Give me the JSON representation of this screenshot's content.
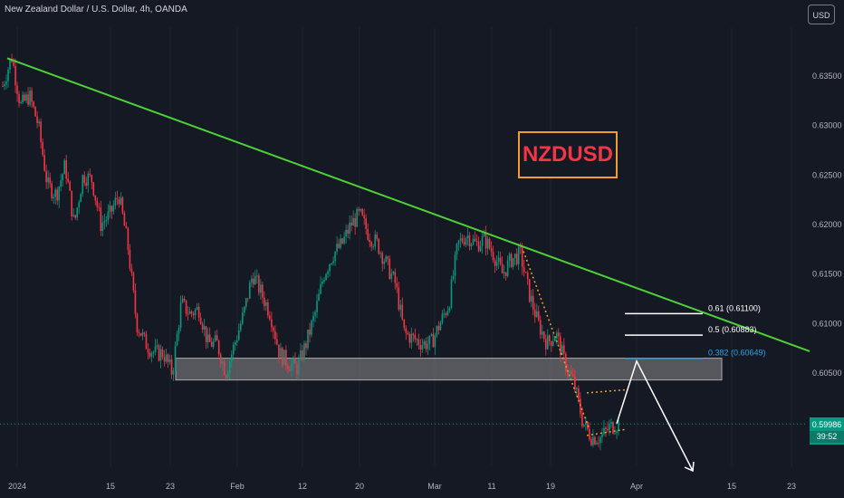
{
  "header": {
    "symbol_title": "New Zealand Dollar / U.S. Dollar, 4h, OANDA",
    "currency_button": "USD"
  },
  "annotation": {
    "pair_label": "NZDUSD"
  },
  "last_price": {
    "value": "0.59986",
    "countdown": "39:52"
  },
  "colors": {
    "background": "#151924",
    "up_candle": "#089981",
    "down_candle": "#f23645",
    "trendline": "#4cd137",
    "fib_line": "#ffffff",
    "fib_382": "#22a7f0",
    "zone": "#808080",
    "label_border": "#f29e2c",
    "label_text": "#f23645"
  },
  "chart_data": {
    "type": "candlestick",
    "title": "New Zealand Dollar / U.S. Dollar, 4h, OANDA",
    "x_ticks": [
      "2024",
      "15",
      "23",
      "Feb",
      "12",
      "20",
      "Mar",
      "11",
      "19",
      "Apr",
      "15",
      "23"
    ],
    "y_ticks": [
      "0.63500",
      "0.63000",
      "0.62500",
      "0.62000",
      "0.61500",
      "0.61000",
      "0.60500"
    ],
    "ylim": [
      0.597,
      0.637
    ],
    "price_path": [
      [
        0.634,
        0.637
      ],
      [
        0.632,
        0.633
      ],
      [
        0.63,
        0.624
      ],
      [
        0.623,
        0.626
      ],
      [
        0.62,
        0.625
      ],
      [
        0.6245,
        0.62
      ],
      [
        0.621,
        0.623
      ],
      [
        0.618,
        0.61
      ],
      [
        0.608,
        0.607
      ],
      [
        0.607,
        0.605
      ],
      [
        0.612,
        0.611
      ],
      [
        0.6115,
        0.608
      ],
      [
        0.608,
        0.605
      ],
      [
        0.608,
        0.611
      ],
      [
        0.615,
        0.613
      ],
      [
        0.611,
        0.607
      ],
      [
        0.606,
        0.6055
      ],
      [
        0.608,
        0.611
      ],
      [
        0.615,
        0.617
      ],
      [
        0.618,
        0.62
      ],
      [
        0.621,
        0.619
      ],
      [
        0.618,
        0.616
      ],
      [
        0.614,
        0.609
      ],
      [
        0.6085,
        0.608
      ],
      [
        0.608,
        0.61
      ],
      [
        0.612,
        0.618
      ],
      [
        0.619,
        0.618
      ],
      [
        0.6185,
        0.617
      ],
      [
        0.615,
        0.6165
      ],
      [
        0.617,
        0.613
      ],
      [
        0.61,
        0.608
      ],
      [
        0.609,
        0.606
      ],
      [
        0.604,
        0.6
      ],
      [
        0.5985,
        0.5985
      ],
      [
        0.5995,
        0.5999
      ]
    ],
    "trendline": {
      "from": [
        "2024",
        0.6368
      ],
      "to": [
        "Apr 23+",
        0.6072
      ]
    },
    "zone": {
      "low": 0.6043,
      "high": 0.6065
    },
    "fib_levels": [
      {
        "label": "0.61 (0.61100)",
        "value": 0.611
      },
      {
        "label": "0.5 (0.60883)",
        "value": 0.60883
      },
      {
        "label": "0.382 (0.60649)",
        "value": 0.60649
      }
    ],
    "last_price": 0.59986,
    "projection": [
      0.5999,
      0.6062,
      0.597
    ]
  }
}
